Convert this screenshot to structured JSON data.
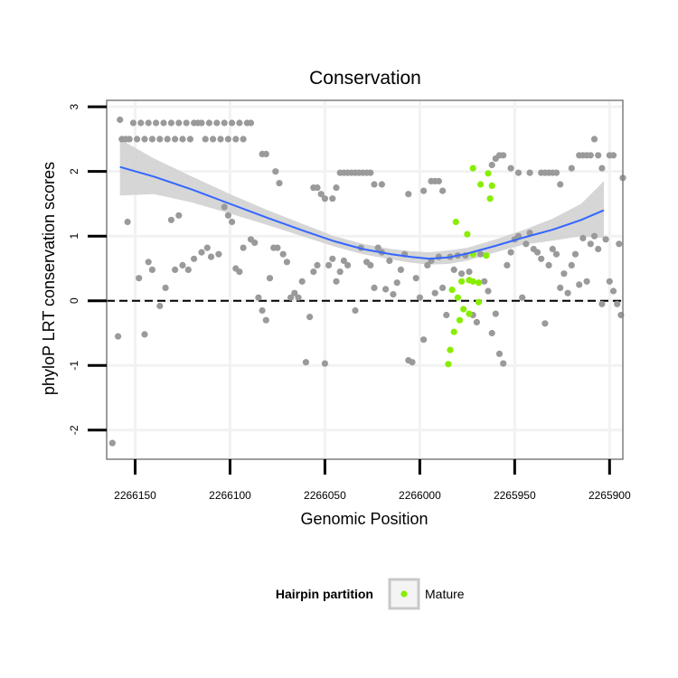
{
  "chart_data": {
    "type": "scatter",
    "title": "Conservation",
    "xlabel": "Genomic Position",
    "ylabel": "phyloP LRT conservation scores",
    "x_reversed": true,
    "xlim": [
      2266165,
      2265893
    ],
    "ylim": [
      -2.45,
      3.1
    ],
    "x_ticks": [
      2266150,
      2266100,
      2266050,
      2266000,
      2265950,
      2265900
    ],
    "x_tick_labels": [
      "2266150",
      "2266100",
      "2266050",
      "2266000",
      "2265950",
      "2265900"
    ],
    "y_ticks": [
      -2,
      -1,
      0,
      1,
      2,
      3
    ],
    "y_tick_labels": [
      "-2",
      "-1",
      "0",
      "1",
      "2",
      "3"
    ],
    "reference_line": {
      "y": 0,
      "style": "dashed"
    },
    "colors": {
      "background_points": "#9a9a9a",
      "mature_points": "#88ee00",
      "trend_line": "#3366ff",
      "confidence_band": "#d2d2d2",
      "panel_border": "#7f7f7f",
      "grid": "#f2f2f2"
    },
    "legend": {
      "title": "Hairpin partition",
      "position": "bottom",
      "entries": [
        {
          "label": "Mature",
          "color": "#88ee00"
        }
      ]
    },
    "series": [
      {
        "name": "Other",
        "color": "#9a9a9a",
        "points": [
          [
            2266158,
            2.8
          ],
          [
            2266157,
            2.5
          ],
          [
            2266155,
            2.5
          ],
          [
            2266153,
            2.5
          ],
          [
            2266151,
            2.75
          ],
          [
            2266149,
            2.5
          ],
          [
            2266147,
            2.75
          ],
          [
            2266145,
            2.5
          ],
          [
            2266143,
            2.75
          ],
          [
            2266141,
            2.5
          ],
          [
            2266139,
            2.75
          ],
          [
            2266137,
            2.5
          ],
          [
            2266135,
            2.75
          ],
          [
            2266133,
            2.5
          ],
          [
            2266131,
            2.75
          ],
          [
            2266129,
            2.5
          ],
          [
            2266127,
            2.75
          ],
          [
            2266125,
            2.5
          ],
          [
            2266123,
            2.75
          ],
          [
            2266121,
            2.5
          ],
          [
            2266119,
            2.75
          ],
          [
            2266117,
            2.75
          ],
          [
            2266115,
            2.75
          ],
          [
            2266113,
            2.5
          ],
          [
            2266111,
            2.75
          ],
          [
            2266109,
            2.5
          ],
          [
            2266107,
            2.75
          ],
          [
            2266105,
            2.5
          ],
          [
            2266103,
            2.75
          ],
          [
            2266101,
            2.5
          ],
          [
            2266099,
            2.75
          ],
          [
            2266097,
            2.5
          ],
          [
            2266095,
            2.75
          ],
          [
            2266093,
            2.5
          ],
          [
            2266091,
            2.75
          ],
          [
            2266089,
            2.75
          ],
          [
            2266083,
            2.27
          ],
          [
            2266081,
            2.27
          ],
          [
            2266076,
            2.0
          ],
          [
            2266074,
            1.82
          ],
          [
            2266056,
            1.75
          ],
          [
            2266054,
            1.75
          ],
          [
            2266052,
            1.65
          ],
          [
            2266050,
            1.58
          ],
          [
            2266046,
            1.58
          ],
          [
            2266044,
            1.75
          ],
          [
            2266042,
            1.98
          ],
          [
            2266040,
            1.98
          ],
          [
            2266038,
            1.98
          ],
          [
            2266036,
            1.98
          ],
          [
            2266034,
            1.98
          ],
          [
            2266032,
            1.98
          ],
          [
            2266030,
            1.98
          ],
          [
            2266028,
            1.98
          ],
          [
            2266026,
            1.98
          ],
          [
            2266024,
            1.8
          ],
          [
            2266020,
            1.8
          ],
          [
            2266006,
            1.65
          ],
          [
            2265998,
            1.7
          ],
          [
            2265994,
            1.85
          ],
          [
            2265992,
            1.85
          ],
          [
            2265990,
            1.85
          ],
          [
            2265988,
            1.7
          ],
          [
            2265962,
            2.1
          ],
          [
            2265960,
            2.2
          ],
          [
            2265958,
            2.25
          ],
          [
            2265956,
            2.25
          ],
          [
            2265952,
            2.05
          ],
          [
            2265948,
            1.98
          ],
          [
            2265942,
            1.98
          ],
          [
            2265936,
            1.98
          ],
          [
            2265934,
            1.98
          ],
          [
            2265932,
            1.98
          ],
          [
            2265930,
            1.98
          ],
          [
            2265928,
            1.98
          ],
          [
            2265926,
            1.8
          ],
          [
            2265920,
            2.05
          ],
          [
            2265916,
            2.25
          ],
          [
            2265914,
            2.25
          ],
          [
            2265912,
            2.25
          ],
          [
            2265910,
            2.25
          ],
          [
            2265908,
            2.5
          ],
          [
            2265906,
            2.25
          ],
          [
            2265904,
            2.05
          ],
          [
            2265900,
            2.25
          ],
          [
            2265898,
            2.25
          ],
          [
            2265893,
            1.9
          ],
          [
            2266162,
            -2.2
          ],
          [
            2266159,
            -0.55
          ],
          [
            2266154,
            1.22
          ],
          [
            2266148,
            0.35
          ],
          [
            2266145,
            -0.52
          ],
          [
            2266143,
            0.6
          ],
          [
            2266141,
            0.48
          ],
          [
            2266137,
            -0.08
          ],
          [
            2266134,
            0.2
          ],
          [
            2266131,
            1.25
          ],
          [
            2266129,
            0.48
          ],
          [
            2266127,
            1.32
          ],
          [
            2266125,
            0.55
          ],
          [
            2266122,
            0.48
          ],
          [
            2266119,
            0.65
          ],
          [
            2266115,
            0.75
          ],
          [
            2266112,
            0.82
          ],
          [
            2266110,
            0.68
          ],
          [
            2266106,
            0.72
          ],
          [
            2266103,
            1.45
          ],
          [
            2266101,
            1.32
          ],
          [
            2266099,
            1.22
          ],
          [
            2266097,
            0.5
          ],
          [
            2266095,
            0.45
          ],
          [
            2266093,
            0.82
          ],
          [
            2266089,
            0.95
          ],
          [
            2266087,
            0.9
          ],
          [
            2266085,
            0.05
          ],
          [
            2266083,
            -0.15
          ],
          [
            2266081,
            -0.3
          ],
          [
            2266079,
            0.35
          ],
          [
            2266077,
            0.82
          ],
          [
            2266075,
            0.82
          ],
          [
            2266072,
            0.72
          ],
          [
            2266070,
            0.6
          ],
          [
            2266068,
            0.05
          ],
          [
            2266066,
            0.12
          ],
          [
            2266064,
            0.05
          ],
          [
            2266062,
            0.3
          ],
          [
            2266060,
            -0.95
          ],
          [
            2266058,
            -0.25
          ],
          [
            2266056,
            0.45
          ],
          [
            2266054,
            0.55
          ],
          [
            2266050,
            -0.97
          ],
          [
            2266048,
            0.55
          ],
          [
            2266046,
            0.65
          ],
          [
            2266044,
            0.3
          ],
          [
            2266042,
            0.45
          ],
          [
            2266040,
            0.62
          ],
          [
            2266038,
            0.55
          ],
          [
            2266034,
            -0.15
          ],
          [
            2266031,
            0.82
          ],
          [
            2266028,
            0.6
          ],
          [
            2266026,
            0.55
          ],
          [
            2266024,
            0.2
          ],
          [
            2266022,
            0.82
          ],
          [
            2266020,
            0.75
          ],
          [
            2266018,
            0.18
          ],
          [
            2266016,
            0.62
          ],
          [
            2266014,
            0.1
          ],
          [
            2266012,
            0.28
          ],
          [
            2266010,
            0.48
          ],
          [
            2266008,
            0.72
          ],
          [
            2266006,
            -0.92
          ],
          [
            2266004,
            -0.95
          ],
          [
            2266002,
            0.35
          ],
          [
            2266000,
            0.05
          ],
          [
            2265998,
            -0.6
          ],
          [
            2265996,
            0.55
          ],
          [
            2265994,
            0.62
          ],
          [
            2265992,
            0.12
          ],
          [
            2265990,
            0.68
          ],
          [
            2265988,
            0.2
          ],
          [
            2265986,
            -0.22
          ],
          [
            2265984,
            0.68
          ],
          [
            2265982,
            0.48
          ],
          [
            2265980,
            0.7
          ],
          [
            2265978,
            0.42
          ],
          [
            2265976,
            0.7
          ],
          [
            2265974,
            0.45
          ],
          [
            2265972,
            -0.22
          ],
          [
            2265970,
            -0.33
          ],
          [
            2265968,
            0.72
          ],
          [
            2265966,
            0.3
          ],
          [
            2265964,
            0.15
          ],
          [
            2265962,
            -0.5
          ],
          [
            2265960,
            -0.2
          ],
          [
            2265958,
            -0.82
          ],
          [
            2265956,
            -0.97
          ],
          [
            2265954,
            0.55
          ],
          [
            2265952,
            0.75
          ],
          [
            2265950,
            0.95
          ],
          [
            2265948,
            1.0
          ],
          [
            2265946,
            0.05
          ],
          [
            2265944,
            0.88
          ],
          [
            2265942,
            1.05
          ],
          [
            2265940,
            0.8
          ],
          [
            2265938,
            0.75
          ],
          [
            2265936,
            0.65
          ],
          [
            2265934,
            -0.35
          ],
          [
            2265932,
            0.55
          ],
          [
            2265930,
            0.8
          ],
          [
            2265928,
            0.72
          ],
          [
            2265926,
            0.2
          ],
          [
            2265924,
            0.42
          ],
          [
            2265922,
            0.12
          ],
          [
            2265920,
            0.55
          ],
          [
            2265918,
            0.72
          ],
          [
            2265916,
            0.25
          ],
          [
            2265914,
            0.97
          ],
          [
            2265912,
            0.3
          ],
          [
            2265910,
            0.88
          ],
          [
            2265908,
            1.0
          ],
          [
            2265906,
            0.8
          ],
          [
            2265904,
            -0.05
          ],
          [
            2265902,
            0.95
          ],
          [
            2265900,
            0.3
          ],
          [
            2265898,
            0.15
          ],
          [
            2265896,
            -0.05
          ],
          [
            2265895,
            0.88
          ],
          [
            2265894,
            -0.22
          ]
        ]
      },
      {
        "name": "Mature",
        "color": "#88ee00",
        "points": [
          [
            2265981,
            1.22
          ],
          [
            2265972,
            2.05
          ],
          [
            2265968,
            1.8
          ],
          [
            2265964,
            1.97
          ],
          [
            2265962,
            1.78
          ],
          [
            2265963,
            1.58
          ],
          [
            2265975,
            1.03
          ],
          [
            2265983,
            0.17
          ],
          [
            2265978,
            0.3
          ],
          [
            2265974,
            0.32
          ],
          [
            2265972,
            0.3
          ],
          [
            2265969,
            0.28
          ],
          [
            2265980,
            0.05
          ],
          [
            2265977,
            -0.13
          ],
          [
            2265974,
            -0.2
          ],
          [
            2265969,
            -0.02
          ],
          [
            2265982,
            -0.48
          ],
          [
            2265979,
            -0.3
          ],
          [
            2265984,
            -0.76
          ],
          [
            2265985,
            -0.98
          ],
          [
            2265972,
            0.72
          ],
          [
            2265965,
            0.7
          ]
        ]
      }
    ],
    "smooth": {
      "method": "loess",
      "x": [
        2266158,
        2266140,
        2266120,
        2266100,
        2266080,
        2266060,
        2266045,
        2266030,
        2266015,
        2266005,
        2265995,
        2265985,
        2265975,
        2265960,
        2265945,
        2265930,
        2265915,
        2265903
      ],
      "y": [
        2.07,
        1.92,
        1.72,
        1.5,
        1.28,
        1.07,
        0.92,
        0.8,
        0.72,
        0.68,
        0.65,
        0.67,
        0.73,
        0.85,
        0.98,
        1.1,
        1.25,
        1.4
      ],
      "upper": [
        2.5,
        2.2,
        1.92,
        1.65,
        1.4,
        1.17,
        1.0,
        0.88,
        0.8,
        0.77,
        0.75,
        0.78,
        0.82,
        0.95,
        1.1,
        1.27,
        1.5,
        1.85
      ],
      "lower": [
        1.63,
        1.65,
        1.52,
        1.35,
        1.17,
        0.98,
        0.84,
        0.72,
        0.64,
        0.59,
        0.56,
        0.57,
        0.62,
        0.75,
        0.87,
        0.93,
        1.0,
        0.97
      ]
    }
  }
}
